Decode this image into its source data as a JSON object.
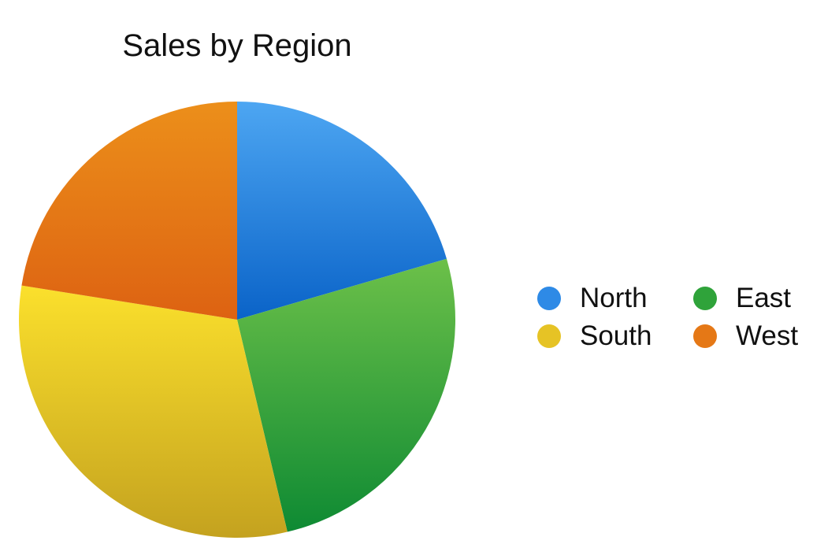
{
  "chart_data": {
    "type": "pie",
    "title": "Sales by Region",
    "categories": [
      "North",
      "East",
      "South",
      "West"
    ],
    "values": [
      20.5,
      25.8,
      31.2,
      22.5
    ],
    "start_angle": "12 o'clock",
    "direction": "clockwise",
    "legend_position": "right",
    "colors": {
      "North": {
        "top": "#4da6f2",
        "bottom": "#0a63c8"
      },
      "East": {
        "top": "#6cc049",
        "bottom": "#0e8a33"
      },
      "South": {
        "top": "#fbe02c",
        "bottom": "#c4a21f"
      },
      "West": {
        "top": "#ec8f1a",
        "bottom": "#dd6212"
      }
    },
    "legend": [
      {
        "label": "North",
        "color": "#2e8ae6"
      },
      {
        "label": "East",
        "color": "#2fa33a"
      },
      {
        "label": "South",
        "color": "#e6c325"
      },
      {
        "label": "West",
        "color": "#e57816"
      }
    ]
  }
}
